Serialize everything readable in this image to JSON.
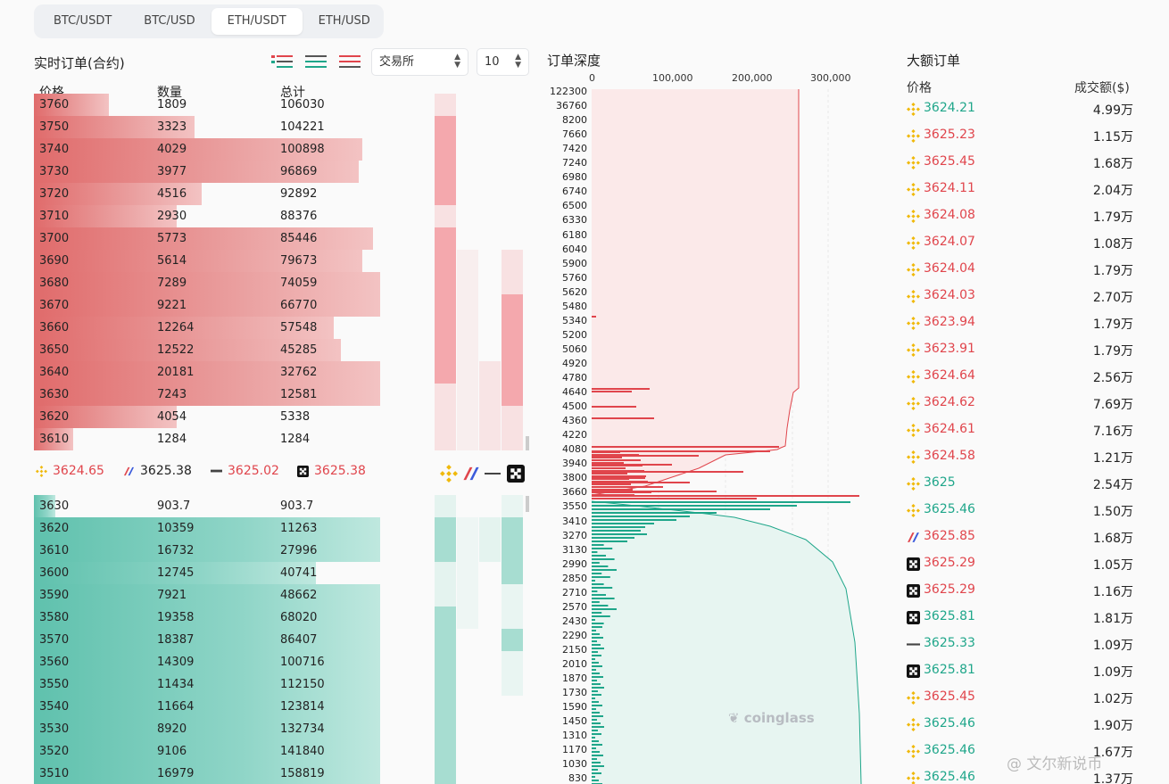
{
  "tabs": [
    "BTC/USDT",
    "BTC/USD",
    "ETH/USDT",
    "ETH/USD"
  ],
  "active_tab": 2,
  "orderbook": {
    "title": "实时订单(合约)",
    "exchange_select": "交易所",
    "depth_select": "10",
    "col_price": "价格",
    "col_qty": "数量",
    "col_total": "总计",
    "asks": [
      {
        "price": "3760",
        "qty": "1809",
        "total": "106030",
        "fill": 0.21
      },
      {
        "price": "3750",
        "qty": "3323",
        "total": "104221",
        "fill": 0.45
      },
      {
        "price": "3740",
        "qty": "4029",
        "total": "100898",
        "fill": 0.92
      },
      {
        "price": "3730",
        "qty": "3977",
        "total": "96869",
        "fill": 0.91
      },
      {
        "price": "3720",
        "qty": "4516",
        "total": "92892",
        "fill": 0.47
      },
      {
        "price": "3710",
        "qty": "2930",
        "total": "88376",
        "fill": 0.4
      },
      {
        "price": "3700",
        "qty": "5773",
        "total": "85446",
        "fill": 0.95
      },
      {
        "price": "3690",
        "qty": "5614",
        "total": "79673",
        "fill": 0.92
      },
      {
        "price": "3680",
        "qty": "7289",
        "total": "74059",
        "fill": 0.97
      },
      {
        "price": "3670",
        "qty": "9221",
        "total": "66770",
        "fill": 0.97
      },
      {
        "price": "3660",
        "qty": "12264",
        "total": "57548",
        "fill": 0.84
      },
      {
        "price": "3650",
        "qty": "12522",
        "total": "45285",
        "fill": 0.86
      },
      {
        "price": "3640",
        "qty": "20181",
        "total": "32762",
        "fill": 0.97
      },
      {
        "price": "3630",
        "qty": "7243",
        "total": "12581",
        "fill": 0.97
      },
      {
        "price": "3620",
        "qty": "4054",
        "total": "5338",
        "fill": 0.4
      },
      {
        "price": "3610",
        "qty": "1284",
        "total": "1284",
        "fill": 0.11
      }
    ],
    "bids": [
      {
        "price": "3630",
        "qty": "903.7",
        "total": "903.7",
        "fill": 0.06
      },
      {
        "price": "3620",
        "qty": "10359",
        "total": "11263",
        "fill": 0.97
      },
      {
        "price": "3610",
        "qty": "16732",
        "total": "27996",
        "fill": 0.97
      },
      {
        "price": "3600",
        "qty": "12745",
        "total": "40741",
        "fill": 0.79
      },
      {
        "price": "3590",
        "qty": "7921",
        "total": "48662",
        "fill": 0.97
      },
      {
        "price": "3580",
        "qty": "19358",
        "total": "68020",
        "fill": 0.97
      },
      {
        "price": "3570",
        "qty": "18387",
        "total": "86407",
        "fill": 0.97
      },
      {
        "price": "3560",
        "qty": "14309",
        "total": "100716",
        "fill": 0.97
      },
      {
        "price": "3550",
        "qty": "11434",
        "total": "112150",
        "fill": 0.97
      },
      {
        "price": "3540",
        "qty": "11664",
        "total": "123814",
        "fill": 0.97
      },
      {
        "price": "3530",
        "qty": "8920",
        "total": "132734",
        "fill": 0.97
      },
      {
        "price": "3520",
        "qty": "9106",
        "total": "141840",
        "fill": 0.97
      },
      {
        "price": "3510",
        "qty": "16979",
        "total": "158819",
        "fill": 0.97
      }
    ],
    "tickers": [
      {
        "exchange": "binance-icon",
        "price": "3624.65"
      },
      {
        "exchange": "bitmex-icon",
        "price": "3625.38"
      },
      {
        "exchange": "bybit-icon",
        "price": "3625.02"
      },
      {
        "exchange": "okx-icon",
        "price": "3625.38"
      }
    ]
  },
  "depth": {
    "title": "订单深度",
    "x_ticks": [
      "0",
      "100,000",
      "200,000",
      "300,000"
    ],
    "y_ticks": [
      "122300",
      "36760",
      "8200",
      "7660",
      "7420",
      "7240",
      "6980",
      "6740",
      "6500",
      "6330",
      "6180",
      "6040",
      "5900",
      "5760",
      "5620",
      "5480",
      "5340",
      "5200",
      "5060",
      "4920",
      "4780",
      "4640",
      "4500",
      "4360",
      "4220",
      "4080",
      "3940",
      "3800",
      "3660",
      "3550",
      "3410",
      "3270",
      "3130",
      "2990",
      "2850",
      "2710",
      "2570",
      "2430",
      "2290",
      "2150",
      "2010",
      "1870",
      "1730",
      "1590",
      "1450",
      "1310",
      "1170",
      "1030",
      "830"
    ],
    "watermark": "coinglass"
  },
  "large_orders": {
    "title": "大额订单",
    "col_price": "价格",
    "col_amount": "成交额($)",
    "rows": [
      {
        "icon": "binance-icon",
        "price": "3624.21",
        "side": "green",
        "amount": "4.99万"
      },
      {
        "icon": "binance-icon",
        "price": "3625.23",
        "side": "red",
        "amount": "1.15万"
      },
      {
        "icon": "binance-icon",
        "price": "3625.45",
        "side": "red",
        "amount": "1.68万"
      },
      {
        "icon": "binance-icon",
        "price": "3624.11",
        "side": "red",
        "amount": "2.04万"
      },
      {
        "icon": "binance-icon",
        "price": "3624.08",
        "side": "red",
        "amount": "1.79万"
      },
      {
        "icon": "binance-icon",
        "price": "3624.07",
        "side": "red",
        "amount": "1.08万"
      },
      {
        "icon": "binance-icon",
        "price": "3624.04",
        "side": "red",
        "amount": "1.79万"
      },
      {
        "icon": "binance-icon",
        "price": "3624.03",
        "side": "red",
        "amount": "2.70万"
      },
      {
        "icon": "binance-icon",
        "price": "3623.94",
        "side": "red",
        "amount": "1.79万"
      },
      {
        "icon": "binance-icon",
        "price": "3623.91",
        "side": "red",
        "amount": "1.79万"
      },
      {
        "icon": "binance-icon",
        "price": "3624.64",
        "side": "red",
        "amount": "2.56万"
      },
      {
        "icon": "binance-icon",
        "price": "3624.62",
        "side": "red",
        "amount": "7.69万"
      },
      {
        "icon": "binance-icon",
        "price": "3624.61",
        "side": "red",
        "amount": "7.16万"
      },
      {
        "icon": "binance-icon",
        "price": "3624.58",
        "side": "red",
        "amount": "1.21万"
      },
      {
        "icon": "binance-icon",
        "price": "3625",
        "side": "green",
        "amount": "2.54万"
      },
      {
        "icon": "binance-icon",
        "price": "3625.46",
        "side": "green",
        "amount": "1.50万"
      },
      {
        "icon": "bitmex-icon",
        "price": "3625.85",
        "side": "red",
        "amount": "1.68万"
      },
      {
        "icon": "okx-icon",
        "price": "3625.29",
        "side": "red",
        "amount": "1.05万"
      },
      {
        "icon": "okx-icon",
        "price": "3625.29",
        "side": "red",
        "amount": "1.16万"
      },
      {
        "icon": "okx-icon",
        "price": "3625.81",
        "side": "green",
        "amount": "1.81万"
      },
      {
        "icon": "bybit-icon",
        "price": "3625.33",
        "side": "green",
        "amount": "1.09万"
      },
      {
        "icon": "okx-icon",
        "price": "3625.81",
        "side": "green",
        "amount": "1.09万"
      },
      {
        "icon": "binance-icon",
        "price": "3625.45",
        "side": "red",
        "amount": "1.02万"
      },
      {
        "icon": "binance-icon",
        "price": "3625.46",
        "side": "green",
        "amount": "1.90万"
      },
      {
        "icon": "binance-icon",
        "price": "3625.46",
        "side": "green",
        "amount": "1.67万"
      },
      {
        "icon": "binance-icon",
        "price": "3625.46",
        "side": "green",
        "amount": "1.37万"
      }
    ]
  },
  "footer_watermark": "@ 文尔新说币"
}
